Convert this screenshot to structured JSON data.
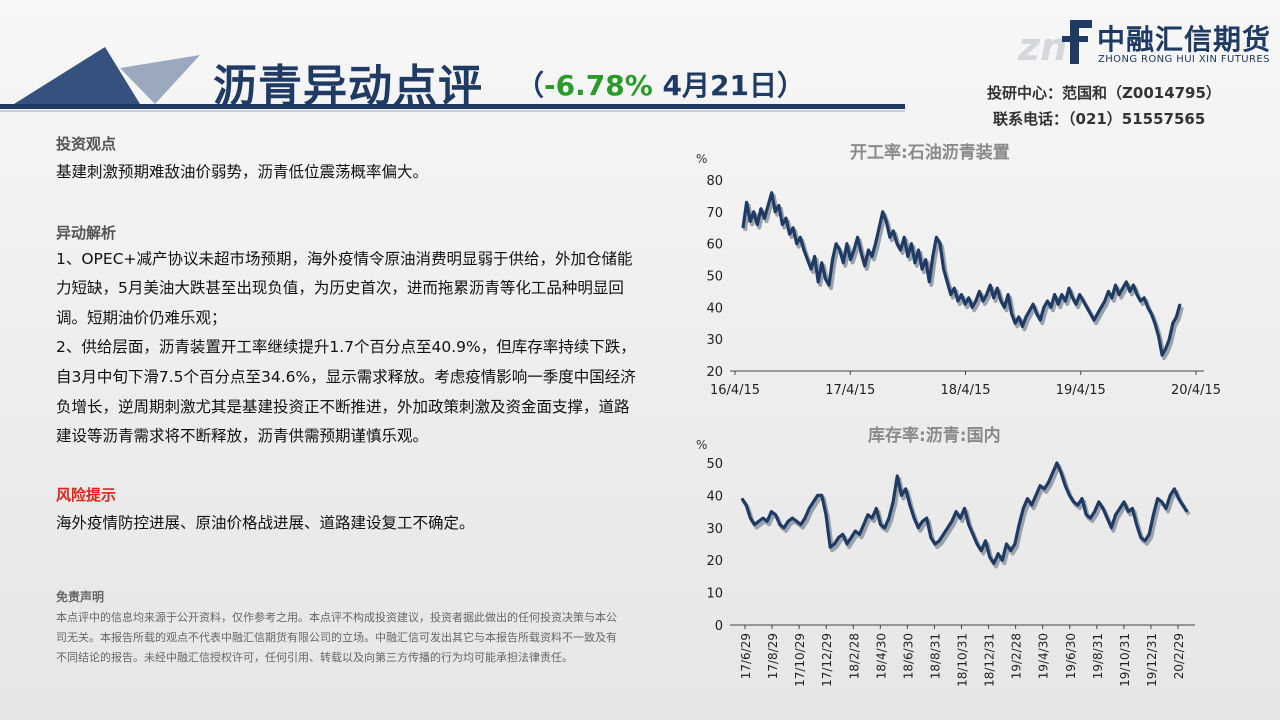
{
  "header": {
    "title": "沥青异动点评",
    "paren_open": "（",
    "change_pct": "-6.78%",
    "date": "4月21日",
    "paren_close": "）"
  },
  "logo": {
    "cn": "中融汇信期货",
    "en": "ZHONG RONG HUI XIN FUTURES"
  },
  "contact": {
    "researcher": "投研中心：范国和（Z0014795）",
    "phone": "联系电话：（021）51557565"
  },
  "sections": {
    "view_title": "投资观点",
    "view_text": "基建刺激预期难敌油价弱势，沥青低位震荡概率偏大。",
    "analysis_title": "异动解析",
    "analysis_p1": "1、OPEC+减产协议未超市场预期，海外疫情令原油消费明显弱于供给，外加仓储能力短缺，5月美油大跌甚至出现负值，为历史首次，进而拖累沥青等化工品种明显回调。短期油价仍难乐观；",
    "analysis_p2": "2、供给层面，沥青装置开工率继续提升1.7个百分点至40.9%，但库存率持续下跌，自3月中旬下滑7.5个百分点至34.6%，显示需求释放。考虑疫情影响一季度中国经济负增长，逆周期刺激尤其是基建投资正不断推进，外加政策刺激及资金面支撑，道路建设等沥青需求将不断释放，沥青供需预期谨慎乐观。",
    "risk_title": "风险提示",
    "risk_text": "海外疫情防控进展、原油价格战进展、道路建设复工不确定。"
  },
  "disclaimer": {
    "title": "免责声明",
    "text": "本点评中的信息均来源于公开资料，仅作参考之用。本点评不构成投资建议，投资者据此做出的任何投资决策与本公司无关。本报告所载的观点不代表中融汇信期货有限公司的立场。中融汇信可发出其它与本报告所载资料不一致及有不同结论的报告。未经中融汇信授权许可，任何引用、转载以及向第三方传播的行为均可能承担法律责任。"
  },
  "colors": {
    "brand": "#1f3a63",
    "up_green": "#2a9a2a",
    "risk_red": "#e0241b",
    "line": "#1f3a63"
  },
  "chart_data": [
    {
      "type": "line",
      "title": "开工率:石油沥青装置",
      "ylabel": "%",
      "ylim": [
        20,
        80
      ],
      "yticks": [
        "80",
        "70",
        "60",
        "50",
        "40",
        "30",
        "20"
      ],
      "xtick_labels": [
        "16/4/15",
        "17/4/15",
        "18/4/15",
        "19/4/15",
        "20/4/15"
      ],
      "series": [
        {
          "values": [
            65,
            73,
            67,
            70,
            66,
            71,
            68,
            72,
            76,
            70,
            72,
            66,
            68,
            63,
            65,
            60,
            62,
            58,
            55,
            52,
            56,
            48,
            54,
            49,
            47,
            55,
            60,
            58,
            54,
            60,
            55,
            58,
            62,
            57,
            53,
            58,
            56,
            60,
            65,
            70,
            67,
            62,
            64,
            60,
            58,
            62,
            56,
            60,
            54,
            58,
            52,
            55,
            48,
            56,
            62,
            60,
            52,
            48,
            44,
            46,
            42,
            44,
            41,
            43,
            40,
            42,
            45,
            42,
            44,
            47,
            43,
            46,
            42,
            40,
            44,
            38,
            35,
            37,
            34,
            37,
            39,
            41,
            38,
            36,
            40,
            42,
            40,
            44,
            41,
            44,
            42,
            46,
            43,
            41,
            44,
            42,
            40,
            38,
            36,
            38,
            40,
            42,
            45,
            43,
            47,
            44,
            46,
            48,
            45,
            47,
            44,
            42,
            43,
            40,
            38,
            35,
            31,
            25,
            27,
            30,
            35,
            37,
            41
          ]
        }
      ]
    },
    {
      "type": "line",
      "title": "库存率:沥青:国内",
      "ylabel": "%",
      "ylim": [
        0,
        50
      ],
      "yticks": [
        "50",
        "40",
        "30",
        "20",
        "10",
        "0"
      ],
      "xtick_labels": [
        "17/6/29",
        "17/8/29",
        "17/10/29",
        "17/12/29",
        "18/2/28",
        "18/4/30",
        "18/6/30",
        "18/8/31",
        "18/10/31",
        "18/12/31",
        "19/2/28",
        "19/4/30",
        "19/6/30",
        "19/8/31",
        "19/10/31",
        "19/12/31",
        "20/2/29"
      ],
      "series": [
        {
          "values": [
            39,
            37,
            33,
            31,
            32,
            33,
            32,
            35,
            34,
            31,
            30,
            32,
            33,
            32,
            31,
            33,
            36,
            38,
            40,
            40,
            34,
            24,
            25,
            27,
            28,
            25,
            27,
            29,
            28,
            31,
            34,
            33,
            36,
            31,
            30,
            33,
            38,
            46,
            40,
            42,
            37,
            33,
            30,
            32,
            33,
            27,
            25,
            26,
            28,
            30,
            32,
            35,
            33,
            36,
            31,
            28,
            25,
            23,
            26,
            21,
            19,
            22,
            20,
            25,
            23,
            25,
            31,
            36,
            39,
            37,
            40,
            43,
            42,
            44,
            47,
            50,
            47,
            43,
            40,
            38,
            37,
            39,
            34,
            33,
            35,
            38,
            36,
            33,
            30,
            34,
            36,
            38,
            35,
            36,
            31,
            27,
            26,
            28,
            34,
            39,
            38,
            36,
            40,
            42,
            39,
            37,
            35
          ]
        }
      ]
    }
  ]
}
